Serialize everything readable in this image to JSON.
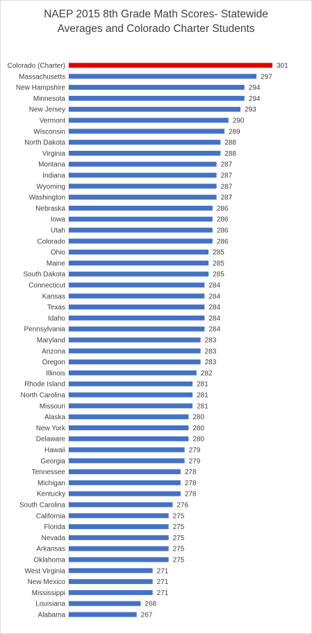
{
  "chart_data": {
    "type": "bar",
    "orientation": "horizontal",
    "title_lines": [
      "NAEP 2015 8th Grade Math Scores- Statewide",
      "Averages and Colorado Charter Students"
    ],
    "categories": [
      "Colorado (Charter)",
      "Massachusetts",
      "New Hampshire",
      "Minnesota",
      "New Jersey",
      "Vermont",
      "Wisconsin",
      "North Dakota",
      "Virginia",
      "Montana",
      "Indiana",
      "Wyoming",
      "Washington",
      "Nebraska",
      "Iowa",
      "Utah",
      "Colorado",
      "Ohio",
      "Maine",
      "South Dakota",
      "Connecticut",
      "Kansas",
      "Texas",
      "Idaho",
      "Pennsylvania",
      "Maryland",
      "Arizona",
      "Oregon",
      "Illinois",
      "Rhode Island",
      "North Carolina",
      "Missouri",
      "Alaska",
      "New York",
      "Delaware",
      "Hawaii",
      "Georgia",
      "Tennessee",
      "Michigan",
      "Kentucky",
      "South Carolina",
      "California",
      "Florida",
      "Nevada",
      "Arkansas",
      "Oklahoma",
      "West Virginia",
      "New Mexico",
      "Mississippi",
      "Louisiana",
      "Alabama"
    ],
    "values": [
      301,
      297,
      294,
      294,
      293,
      290,
      289,
      288,
      288,
      287,
      287,
      287,
      287,
      286,
      286,
      286,
      286,
      285,
      285,
      285,
      284,
      284,
      284,
      284,
      284,
      283,
      283,
      283,
      282,
      281,
      281,
      281,
      280,
      280,
      280,
      279,
      279,
      278,
      278,
      278,
      276,
      275,
      275,
      275,
      275,
      275,
      271,
      271,
      271,
      268,
      267
    ],
    "highlight_index": 0,
    "colors": {
      "default": "#4472c4",
      "highlight": "#e00000"
    },
    "xlim": [
      250,
      301
    ],
    "grid": false,
    "legend": "none"
  }
}
